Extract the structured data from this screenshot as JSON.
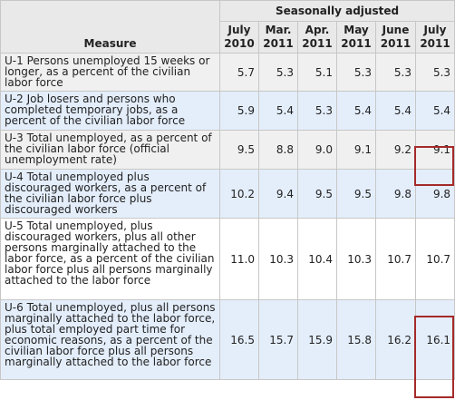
{
  "header": {
    "group_label": "Seasonally adjusted",
    "measure_label": "Measure",
    "periods": [
      {
        "month": "July",
        "year": "2010"
      },
      {
        "month": "Mar.",
        "year": "2011"
      },
      {
        "month": "Apr.",
        "year": "2011"
      },
      {
        "month": "May",
        "year": "2011"
      },
      {
        "month": "June",
        "year": "2011"
      },
      {
        "month": "July",
        "year": "2011"
      }
    ]
  },
  "rows": [
    {
      "measure": "U-1 Persons unemployed 15 weeks or longer, as a percent of the civilian labor force",
      "values": [
        "5.7",
        "5.3",
        "5.1",
        "5.3",
        "5.3",
        "5.3"
      ]
    },
    {
      "measure": "U-2 Job losers and persons who completed temporary jobs, as a percent of the civilian labor force",
      "values": [
        "5.9",
        "5.4",
        "5.3",
        "5.4",
        "5.4",
        "5.4"
      ]
    },
    {
      "measure": "U-3 Total unemployed, as a percent of the civilian labor force (official unemployment rate)",
      "values": [
        "9.5",
        "8.8",
        "9.0",
        "9.1",
        "9.2",
        "9.1"
      ]
    },
    {
      "measure": "U-4 Total unemployed plus discouraged workers, as a percent of the civilian labor force plus discouraged workers",
      "values": [
        "10.2",
        "9.4",
        "9.5",
        "9.5",
        "9.8",
        "9.8"
      ]
    },
    {
      "measure": "U-5 Total unemployed, plus discouraged workers, plus all other persons marginally attached to the labor force, as a percent of the civilian labor force plus all persons marginally attached to the labor force",
      "values": [
        "11.0",
        "10.3",
        "10.4",
        "10.3",
        "10.7",
        "10.7"
      ]
    },
    {
      "measure": "U-6 Total unemployed, plus all persons marginally attached to the labor force, plus total employed part time for economic reasons, as a percent of the civilian labor force plus all persons marginally attached to the labor force",
      "values": [
        "16.5",
        "15.7",
        "15.9",
        "15.8",
        "16.2",
        "16.1"
      ]
    }
  ],
  "highlight_color": "#a52a2a"
}
